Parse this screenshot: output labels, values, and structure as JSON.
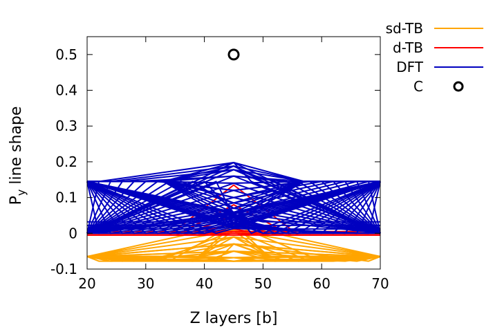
{
  "chart_data": {
    "type": "line",
    "xlabel": "Z layers [b]",
    "ylabel_main": "P",
    "ylabel_sub": "y",
    "ylabel_rest": " line shape",
    "xlim": [
      20,
      70
    ],
    "ylim": [
      -0.1,
      0.55
    ],
    "xticks": [
      20,
      30,
      40,
      50,
      60,
      70
    ],
    "xtick_labels": [
      "20",
      "30",
      "40",
      "50",
      "60",
      "70"
    ],
    "yticks": [
      -0.1,
      0,
      0.1,
      0.2,
      0.3,
      0.4,
      0.5
    ],
    "ytick_labels": [
      "-0.1",
      "0",
      "0.1",
      "0.2",
      "0.3",
      "0.4",
      "0.5"
    ],
    "grid": false,
    "legend_position": "outside-top-right",
    "center_layer": 45,
    "series": [
      {
        "name": "sd-TB",
        "color": "#FFA500",
        "style": "line-family",
        "start_level": -0.065,
        "center_levels": [
          -0.078,
          -0.068,
          -0.05,
          -0.03,
          -0.01,
          0.008,
          0.025
        ],
        "valley_depth": -0.078,
        "valley_layers_left": [
          22,
          24,
          26,
          28,
          30,
          32,
          34,
          36,
          38,
          40,
          42
        ],
        "valley_layers_right": [
          48,
          50,
          52,
          54,
          56,
          58,
          60,
          62,
          64,
          66,
          68
        ]
      },
      {
        "name": "d-TB",
        "color": "#FF0000",
        "style": "line-family",
        "start_level": -0.005,
        "center_levels": [
          0.135,
          0.08,
          0.05,
          0.03,
          0.012,
          0.0
        ]
      },
      {
        "name": "DFT",
        "color": "#0000C0",
        "style": "line-family",
        "start_level": 0.145,
        "base_levels": [
          0.0,
          0.012,
          0.022,
          0.032
        ],
        "peak_value": 0.198,
        "peak_layers_left": [
          22,
          24,
          26,
          28,
          30,
          32,
          34,
          36,
          38,
          40,
          42
        ],
        "peak_layers_right": [
          48,
          50,
          52,
          54,
          56,
          58,
          60,
          62,
          64,
          66,
          68
        ],
        "center_levels": [
          0.198,
          0.188,
          0.178,
          0.16,
          0.14,
          0.12,
          0.1,
          0.085,
          0.07,
          0.058,
          0.045,
          0.03
        ]
      },
      {
        "name": "C",
        "color": "#000000",
        "style": "points",
        "points": [
          {
            "x": 45,
            "y": 0.5
          }
        ]
      }
    ]
  }
}
